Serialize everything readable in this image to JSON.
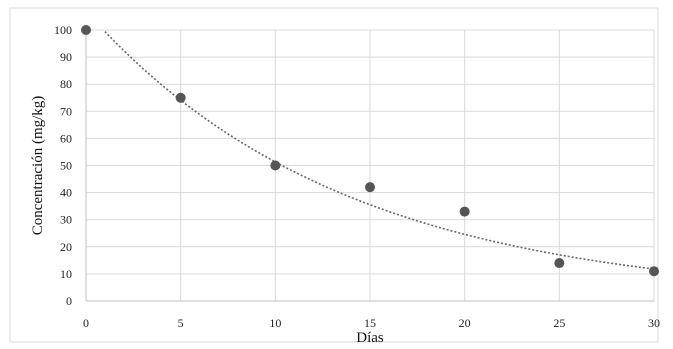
{
  "chart_data": {
    "type": "scatter",
    "xlabel": "Días",
    "ylabel": "Concentración (mg/kg)",
    "xlim": [
      0,
      30
    ],
    "ylim": [
      0,
      100
    ],
    "xticks": [
      0,
      5,
      10,
      15,
      20,
      25,
      30
    ],
    "yticks": [
      0,
      10,
      20,
      30,
      40,
      50,
      60,
      70,
      80,
      90,
      100
    ],
    "grid": true,
    "legend": "none",
    "series": [
      {
        "x": [
          0,
          5,
          10,
          15,
          20,
          25,
          30
        ],
        "y": [
          100,
          75,
          50,
          42,
          33,
          14,
          11
        ],
        "color": "#555555"
      }
    ],
    "trendline": {
      "type": "exponential",
      "a": 107,
      "k": 0.0735,
      "style": "dotted",
      "color": "#666666"
    }
  }
}
